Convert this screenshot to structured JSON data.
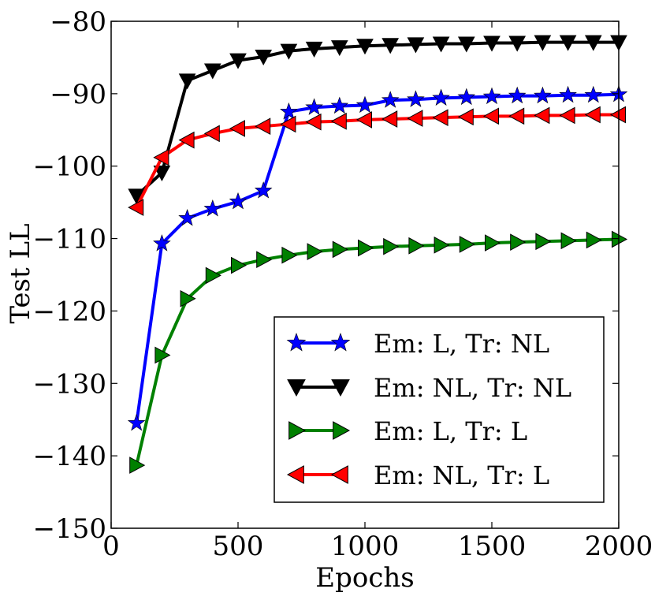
{
  "chart_data": {
    "type": "line",
    "title": "",
    "xlabel": "Epochs",
    "ylabel": "Test LL",
    "xlim": [
      0,
      2000
    ],
    "ylim": [
      -150,
      -80
    ],
    "x_ticks": [
      0,
      500,
      1000,
      1500,
      2000
    ],
    "x_tick_labels": [
      "0",
      "500",
      "1000",
      "1500",
      "2000"
    ],
    "y_ticks": [
      -150,
      -140,
      -130,
      -120,
      -110,
      -100,
      -90,
      -80
    ],
    "y_tick_labels": [
      "−150",
      "−140",
      "−130",
      "−120",
      "−110",
      "−100",
      "−90",
      "−80"
    ],
    "grid": false,
    "legend_position": "lower-right",
    "x": [
      100,
      200,
      300,
      400,
      500,
      600,
      700,
      800,
      900,
      1000,
      1100,
      1200,
      1300,
      1400,
      1500,
      1600,
      1700,
      1800,
      1900,
      2000
    ],
    "series": [
      {
        "name": "Em: L, Tr: NL",
        "color": "#0000ff",
        "marker": "star",
        "values": [
          -135.5,
          -110.7,
          -107.2,
          -105.9,
          -104.9,
          -103.4,
          -92.5,
          -91.9,
          -91.7,
          -91.6,
          -90.9,
          -90.8,
          -90.6,
          -90.5,
          -90.4,
          -90.3,
          -90.3,
          -90.2,
          -90.2,
          -90.1
        ]
      },
      {
        "name": "Em: NL, Tr: NL",
        "color": "#000000",
        "marker": "triangle-down",
        "values": [
          -104.1,
          -100.9,
          -88.2,
          -86.8,
          -85.4,
          -84.9,
          -84.1,
          -83.8,
          -83.6,
          -83.4,
          -83.3,
          -83.2,
          -83.1,
          -83.1,
          -83.0,
          -83.0,
          -82.9,
          -82.9,
          -82.9,
          -82.9
        ]
      },
      {
        "name": "Em: L, Tr: L",
        "color": "#008000",
        "marker": "triangle-right",
        "values": [
          -141.3,
          -126.1,
          -118.3,
          -115.1,
          -113.7,
          -112.9,
          -112.3,
          -111.8,
          -111.5,
          -111.3,
          -111.1,
          -111.0,
          -110.9,
          -110.8,
          -110.6,
          -110.5,
          -110.4,
          -110.3,
          -110.2,
          -110.1
        ]
      },
      {
        "name": "Em: NL, Tr: L",
        "color": "#ff0000",
        "marker": "triangle-left",
        "values": [
          -105.7,
          -98.8,
          -96.4,
          -95.5,
          -94.8,
          -94.5,
          -94.2,
          -93.9,
          -93.8,
          -93.6,
          -93.5,
          -93.4,
          -93.3,
          -93.2,
          -93.1,
          -93.1,
          -93.0,
          -93.0,
          -92.9,
          -92.9
        ]
      }
    ]
  }
}
